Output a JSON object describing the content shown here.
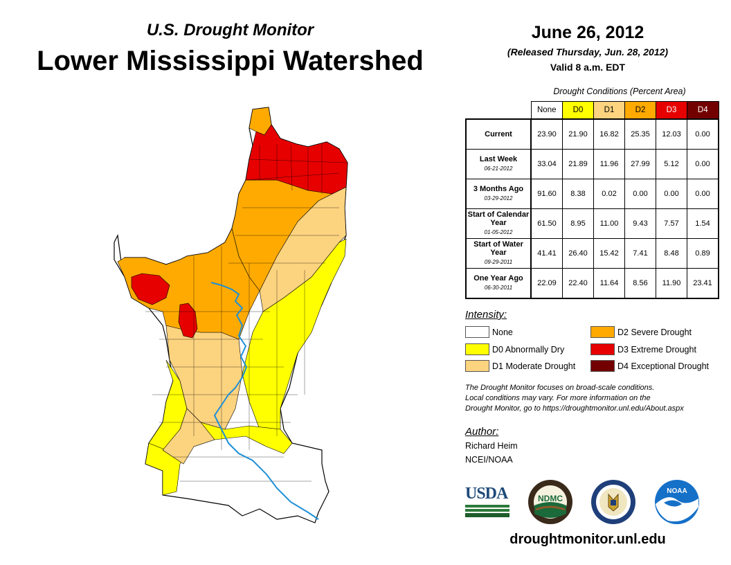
{
  "header": {
    "subtitle": "U.S. Drought Monitor",
    "title": "Lower Mississippi Watershed",
    "date": "June 26, 2012",
    "released": "(Released Thursday, Jun. 28, 2012)",
    "valid": "Valid 8 a.m. EDT"
  },
  "table": {
    "title": "Drought Conditions (Percent Area)",
    "columns": [
      {
        "label": "None",
        "color": "#ffffff"
      },
      {
        "label": "D0",
        "color": "#ffff00"
      },
      {
        "label": "D1",
        "color": "#fcd37f"
      },
      {
        "label": "D2",
        "color": "#ffaa00"
      },
      {
        "label": "D3",
        "color": "#e60000"
      },
      {
        "label": "D4",
        "color": "#730000"
      }
    ],
    "rows": [
      {
        "label": "Current",
        "date": "",
        "values": [
          "23.90",
          "21.90",
          "16.82",
          "25.35",
          "12.03",
          "0.00"
        ]
      },
      {
        "label": "Last Week",
        "date": "06-21-2012",
        "values": [
          "33.04",
          "21.89",
          "11.96",
          "27.99",
          "5.12",
          "0.00"
        ]
      },
      {
        "label": "3 Months Ago",
        "date": "03-29-2012",
        "values": [
          "91.60",
          "8.38",
          "0.02",
          "0.00",
          "0.00",
          "0.00"
        ]
      },
      {
        "label": "Start of Calendar Year",
        "date": "01-05-2012",
        "values": [
          "61.50",
          "8.95",
          "11.00",
          "9.43",
          "7.57",
          "1.54"
        ]
      },
      {
        "label": "Start of Water Year",
        "date": "09-29-2011",
        "values": [
          "41.41",
          "26.40",
          "15.42",
          "7.41",
          "8.48",
          "0.89"
        ]
      },
      {
        "label": "One Year Ago",
        "date": "06-30-2011",
        "values": [
          "22.09",
          "22.40",
          "11.64",
          "8.56",
          "11.90",
          "23.41"
        ]
      }
    ]
  },
  "legend": {
    "title": "Intensity:",
    "items": [
      {
        "label": "None",
        "color": "#ffffff"
      },
      {
        "label": "D0 Abnormally Dry",
        "color": "#ffff00"
      },
      {
        "label": "D1 Moderate Drought",
        "color": "#fcd37f"
      },
      {
        "label": "D2 Severe Drought",
        "color": "#ffaa00"
      },
      {
        "label": "D3 Extreme Drought",
        "color": "#e60000"
      },
      {
        "label": "D4 Exceptional Drought",
        "color": "#730000"
      }
    ]
  },
  "note": {
    "line1": "The Drought Monitor focuses on broad-scale conditions.",
    "line2": "Local conditions may vary. For more information on the",
    "line3": "Drought Monitor, go to https://droughtmonitor.unl.edu/About.aspx"
  },
  "author": {
    "label": "Author:",
    "name": "Richard Heim",
    "org": "NCEI/NOAA"
  },
  "logos": {
    "usda": "USDA",
    "ndmc": "NDMC",
    "noaa": "NOAA"
  },
  "footer": {
    "website": "droughtmonitor.unl.edu"
  },
  "map": {
    "region": "Lower Mississippi Watershed",
    "river_color": "#1e8fd6"
  }
}
